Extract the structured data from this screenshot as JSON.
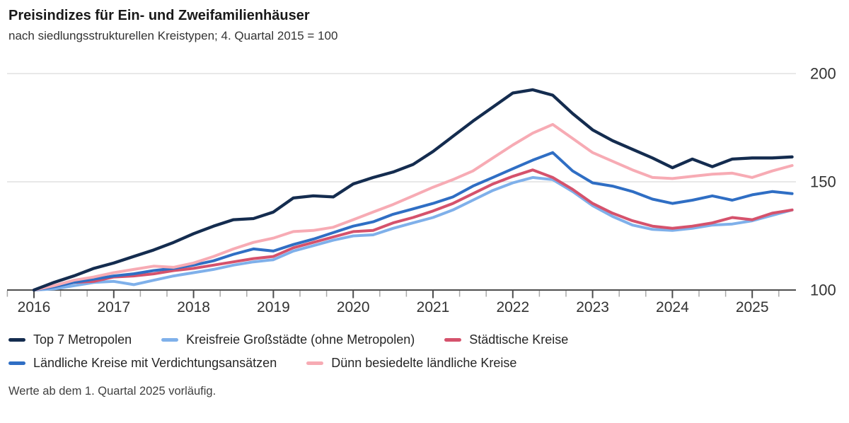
{
  "header": {
    "title": "Preisindizes für Ein- und Zweifamilienhäuser",
    "subtitle": "nach siedlungsstrukturellen Kreistypen; 4. Quartal 2015 = 100"
  },
  "footer": {
    "note": "Werte ab dem 1. Quartal 2025 vorläufig."
  },
  "chart_data": {
    "type": "line",
    "title": "Preisindizes für Ein- und Zweifamilienhäuser",
    "subtitle": "nach siedlungsstrukturellen Kreistypen; 4. Quartal 2015 = 100",
    "x_tick_labels": [
      "2016",
      "2017",
      "2018",
      "2019",
      "2020",
      "2021",
      "2022",
      "2023",
      "2024",
      "2025"
    ],
    "y_ticks": [
      100,
      150,
      200
    ],
    "ylim": [
      100,
      200
    ],
    "grid": "horizontal",
    "legend_position": "bottom",
    "quarters": [
      "Q4 2015",
      "Q1 2016",
      "Q2 2016",
      "Q3 2016",
      "Q4 2016",
      "Q1 2017",
      "Q2 2017",
      "Q3 2017",
      "Q4 2017",
      "Q1 2018",
      "Q2 2018",
      "Q3 2018",
      "Q4 2018",
      "Q1 2019",
      "Q2 2019",
      "Q3 2019",
      "Q4 2019",
      "Q1 2020",
      "Q2 2020",
      "Q3 2020",
      "Q4 2020",
      "Q1 2021",
      "Q2 2021",
      "Q3 2021",
      "Q4 2021",
      "Q1 2022",
      "Q2 2022",
      "Q3 2022",
      "Q4 2022",
      "Q1 2023",
      "Q2 2023",
      "Q3 2023",
      "Q4 2023",
      "Q1 2024",
      "Q2 2024",
      "Q3 2024",
      "Q4 2024",
      "Q1 2025",
      "Q2 2025"
    ],
    "series": [
      {
        "name": "Top 7 Metropolen",
        "color": "#142C4F",
        "values": [
          100,
          103.5,
          106.5,
          110,
          112.5,
          115.5,
          118.5,
          122,
          126,
          129.5,
          132.5,
          133,
          136,
          142.5,
          143.5,
          143,
          149,
          152,
          154.5,
          158,
          164,
          171,
          178,
          184.5,
          191,
          192.5,
          190,
          181.5,
          174,
          169,
          165,
          161,
          156.5,
          160.5,
          157,
          160.5,
          161,
          161,
          161.5
        ]
      },
      {
        "name": "Kreisfreie Großstädte (ohne Metropolen)",
        "color": "#7FB0EA",
        "values": [
          100,
          100.5,
          102,
          103.5,
          104,
          102.5,
          104.5,
          106.5,
          108,
          109.5,
          111.5,
          113,
          114,
          118,
          120.5,
          123,
          125,
          125.5,
          128.5,
          131,
          133.5,
          137,
          141.5,
          146,
          149.5,
          152,
          151,
          145.5,
          139,
          134,
          130,
          128,
          127.5,
          128.5,
          130,
          130.5,
          132,
          134.5,
          137
        ]
      },
      {
        "name": "Städtische Kreise",
        "color": "#D5526C",
        "values": [
          100,
          102,
          103.5,
          104,
          106,
          106.5,
          107.5,
          109,
          110,
          111.5,
          113,
          114.5,
          115.5,
          119.5,
          122,
          124.5,
          127,
          127.5,
          131,
          133.5,
          136.5,
          140,
          144.5,
          149,
          152.5,
          155.5,
          152,
          146.5,
          140,
          135.5,
          132,
          129.5,
          128.5,
          129.5,
          131,
          133.5,
          132.5,
          135.5,
          137
        ]
      },
      {
        "name": "Ländliche Kreise mit Verdichtungsansätzen",
        "color": "#2F6EC4",
        "values": [
          100,
          101.5,
          103.5,
          105,
          106.5,
          107.5,
          109,
          110,
          111.5,
          113.5,
          116.5,
          119,
          118,
          121,
          123.5,
          126.5,
          129.5,
          131.5,
          135,
          137.5,
          140,
          143,
          148,
          152,
          156,
          160,
          163.5,
          155,
          149.5,
          148,
          145.5,
          142,
          140,
          141.5,
          143.5,
          141.5,
          144,
          145.5,
          144.5
        ]
      },
      {
        "name": "Dünn besiedelte ländliche Kreise",
        "color": "#F7ABB4",
        "values": [
          100,
          102,
          104.5,
          106,
          108,
          109.5,
          111,
          110.5,
          112.5,
          115.5,
          119,
          122,
          124,
          127,
          127.5,
          129,
          132.5,
          136,
          139.5,
          143.5,
          147.5,
          151,
          155,
          161,
          167,
          172.5,
          176.5,
          170,
          163.5,
          159.5,
          155.5,
          152,
          151.5,
          152.5,
          153.5,
          154,
          152,
          155,
          157.5
        ]
      }
    ],
    "draw_order": [
      1,
      2,
      3,
      4,
      0
    ],
    "legend_rows": [
      [
        0,
        1,
        2
      ],
      [
        3,
        4
      ]
    ],
    "style": {
      "axis_color": "#4d4d4d",
      "grid_color": "#dadada",
      "minor_tick_color": "#a8a8a8",
      "tick_label_color": "#333333",
      "line_width": 4
    }
  }
}
